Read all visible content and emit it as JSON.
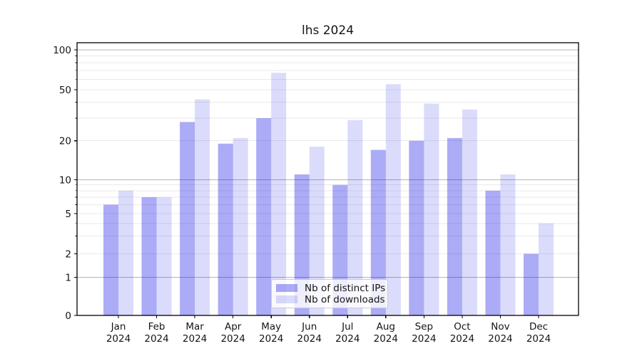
{
  "chart_data": {
    "type": "bar",
    "title": "lhs 2024",
    "categories": [
      "Jan",
      "Feb",
      "Mar",
      "Apr",
      "May",
      "Jun",
      "Jul",
      "Aug",
      "Sep",
      "Oct",
      "Nov",
      "Dec"
    ],
    "category_year_line": "2024",
    "series": [
      {
        "name": "Nb of distinct IPs",
        "color": "rgba(10,10,230,0.34)",
        "color_on_white": "#a9a9f6",
        "values": [
          6,
          7,
          28,
          19,
          30,
          11,
          9,
          17,
          20,
          21,
          8,
          2
        ]
      },
      {
        "name": "Nb of downloads",
        "color": "rgba(10,10,230,0.145)",
        "color_on_white": "#dcdcfb",
        "values": [
          8,
          7,
          42,
          21,
          67,
          18,
          29,
          55,
          39,
          35,
          11,
          4
        ]
      }
    ],
    "xlabel": "",
    "ylabel": "",
    "ylim": [
      0,
      100
    ],
    "y_scale": "log-like with 0 baseline",
    "y_tick_labels": [
      "0",
      "1",
      "2",
      "5",
      "10",
      "20",
      "50",
      "100"
    ],
    "y_ticks": [
      0,
      1,
      2,
      5,
      10,
      20,
      50,
      100
    ],
    "y_major_gridlines": [
      1,
      10,
      100
    ],
    "y_minor_gridlines": [
      2,
      3,
      4,
      5,
      6,
      7,
      8,
      9,
      20,
      30,
      40,
      50,
      60,
      70,
      80,
      90
    ],
    "grid": true,
    "legend_position": "lower center",
    "colors": {
      "major_grid": "#b3b3b3",
      "minor_grid": "#e9e9e9",
      "spine": "#000000",
      "text": "#151515"
    }
  }
}
